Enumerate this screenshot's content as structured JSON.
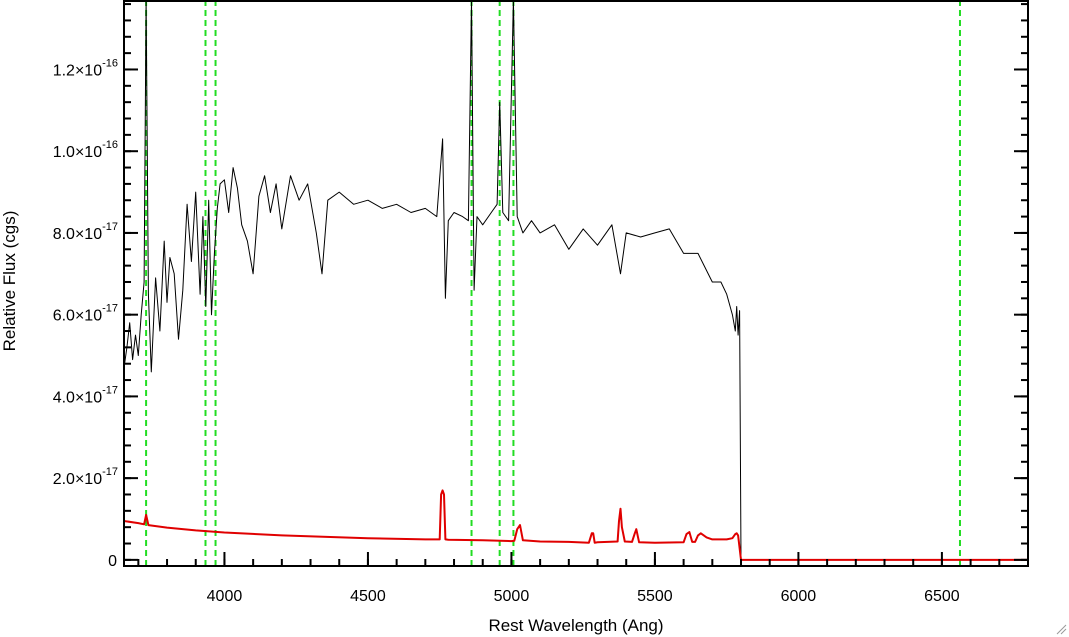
{
  "chart_data": {
    "type": "line",
    "title": "",
    "xlabel": "Rest Wavelength (Ang)",
    "ylabel": "Relative Flux (cgs)",
    "xlim": [
      3650,
      6800
    ],
    "ylim": [
      -1.5e-18,
      1.37e-16
    ],
    "grid": false,
    "legend": "none",
    "x_ticks": [
      {
        "value": 4000,
        "label": "4000"
      },
      {
        "value": 4500,
        "label": "4500"
      },
      {
        "value": 5000,
        "label": "5000"
      },
      {
        "value": 5500,
        "label": "5500"
      },
      {
        "value": 6000,
        "label": "6000"
      },
      {
        "value": 6500,
        "label": "6500"
      }
    ],
    "y_ticks": [
      {
        "value": 0,
        "mantissa": "0",
        "exponent": ""
      },
      {
        "value": 2e-17,
        "mantissa": "2.0×10",
        "exponent": "-17"
      },
      {
        "value": 4e-17,
        "mantissa": "4.0×10",
        "exponent": "-17"
      },
      {
        "value": 6e-17,
        "mantissa": "6.0×10",
        "exponent": "-17"
      },
      {
        "value": 8e-17,
        "mantissa": "8.0×10",
        "exponent": "-17"
      },
      {
        "value": 1e-16,
        "mantissa": "1.0×10",
        "exponent": "-16"
      },
      {
        "value": 1.2e-16,
        "mantissa": "1.2×10",
        "exponent": "-16"
      }
    ],
    "reference_lines_x": [
      3727,
      3934,
      3969,
      4861,
      4959,
      5007,
      6563
    ],
    "series": [
      {
        "color": "#000000",
        "x": [
          3650,
          3660,
          3670,
          3680,
          3690,
          3700,
          3710,
          3720,
          3727,
          3735,
          3745,
          3760,
          3775,
          3790,
          3800,
          3810,
          3825,
          3840,
          3855,
          3870,
          3885,
          3900,
          3915,
          3925,
          3935,
          3945,
          3955,
          3965,
          3975,
          3985,
          4000,
          4015,
          4030,
          4045,
          4060,
          4080,
          4100,
          4120,
          4140,
          4160,
          4180,
          4200,
          4230,
          4260,
          4290,
          4320,
          4340,
          4360,
          4400,
          4450,
          4500,
          4550,
          4600,
          4650,
          4700,
          4740,
          4760,
          4770,
          4780,
          4800,
          4830,
          4850,
          4861,
          4870,
          4880,
          4900,
          4930,
          4950,
          4959,
          4970,
          4990,
          5007,
          5020,
          5040,
          5070,
          5100,
          5150,
          5200,
          5250,
          5300,
          5350,
          5380,
          5400,
          5450,
          5500,
          5550,
          5600,
          5650,
          5700,
          5730,
          5750,
          5770,
          5780,
          5785,
          5790,
          5795,
          5800,
          5900,
          6000,
          6500,
          6800
        ],
        "values": [
          4.7e-17,
          5.2e-17,
          5.8e-17,
          4.9e-17,
          5.5e-17,
          5e-17,
          6e-17,
          6.8e-17,
          1.37e-16,
          6.5e-17,
          4.6e-17,
          6.9e-17,
          5.6e-17,
          7.8e-17,
          6.3e-17,
          7.4e-17,
          7e-17,
          5.4e-17,
          6.6e-17,
          8.7e-17,
          7.3e-17,
          9e-17,
          6.5e-17,
          8.4e-17,
          6.2e-17,
          8.8e-17,
          6e-17,
          7.5e-17,
          8.6e-17,
          9.2e-17,
          9.3e-17,
          8.5e-17,
          9.6e-17,
          9.1e-17,
          8.2e-17,
          7.8e-17,
          7e-17,
          8.9e-17,
          9.4e-17,
          8.5e-17,
          9.2e-17,
          8.1e-17,
          9.4e-17,
          8.8e-17,
          9.2e-17,
          8e-17,
          7e-17,
          8.8e-17,
          9e-17,
          8.7e-17,
          8.8e-17,
          8.6e-17,
          8.7e-17,
          8.5e-17,
          8.6e-17,
          8.4e-17,
          1.03e-16,
          6.4e-17,
          8.3e-17,
          8.5e-17,
          8.4e-17,
          8.3e-17,
          1.37e-16,
          6.6e-17,
          8.4e-17,
          8.2e-17,
          8.5e-17,
          8.7e-17,
          1.12e-16,
          8.5e-17,
          8.3e-17,
          1.37e-16,
          8.4e-17,
          8e-17,
          8.3e-17,
          8e-17,
          8.2e-17,
          7.6e-17,
          8.1e-17,
          7.7e-17,
          8.2e-17,
          7e-17,
          8e-17,
          7.9e-17,
          8e-17,
          8.1e-17,
          7.5e-17,
          7.5e-17,
          6.8e-17,
          6.8e-17,
          6.5e-17,
          6e-17,
          5.6e-17,
          6.2e-17,
          5.5e-17,
          6.1e-17,
          0,
          0,
          0,
          0,
          0
        ]
      },
      {
        "color": "#e00000",
        "x": [
          3650,
          3700,
          3720,
          3727,
          3735,
          3800,
          3900,
          4000,
          4200,
          4500,
          4700,
          4750,
          4755,
          4760,
          4765,
          4770,
          4780,
          4900,
          5000,
          5010,
          5020,
          5030,
          5040,
          5100,
          5200,
          5270,
          5280,
          5285,
          5290,
          5300,
          5370,
          5375,
          5380,
          5385,
          5395,
          5420,
          5430,
          5435,
          5445,
          5500,
          5600,
          5610,
          5620,
          5630,
          5640,
          5650,
          5660,
          5680,
          5700,
          5750,
          5770,
          5780,
          5785,
          5790,
          5800,
          6000,
          6500,
          6800
        ],
        "values": [
          9.5e-18,
          9e-18,
          8.7e-18,
          1.1e-17,
          8.5e-18,
          7.9e-18,
          7.2e-18,
          6.7e-18,
          6e-18,
          5.3e-18,
          5e-18,
          5e-18,
          1.6e-17,
          1.7e-17,
          1.6e-17,
          5e-18,
          4.9e-18,
          4.8e-18,
          4.6e-18,
          4.7e-18,
          7.5e-18,
          8.5e-18,
          4.8e-18,
          4.5e-18,
          4.4e-18,
          4.2e-18,
          6.5e-18,
          6.5e-18,
          4.2e-18,
          4.3e-18,
          4.5e-18,
          9.5e-18,
          1.25e-17,
          8e-18,
          4.5e-18,
          4.4e-18,
          6.5e-18,
          7.5e-18,
          4.3e-18,
          4.2e-18,
          4.3e-18,
          6.3e-18,
          6.8e-18,
          4.4e-18,
          4.4e-18,
          6e-18,
          6.5e-18,
          5.5e-18,
          5e-18,
          5e-18,
          5.3e-18,
          6.3e-18,
          6.5e-18,
          6e-18,
          0,
          0,
          0,
          0
        ]
      }
    ]
  }
}
